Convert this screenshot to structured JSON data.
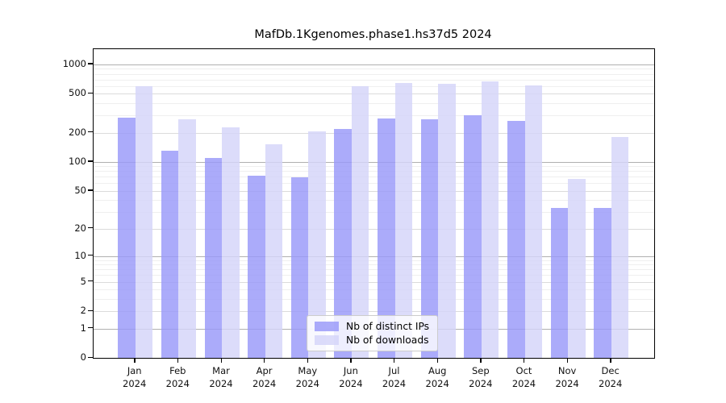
{
  "title": "MafDb.1Kgenomes.phase1.hs37d5 2024",
  "chart_data": {
    "type": "bar",
    "scale": "log1p",
    "title": "MafDb.1Kgenomes.phase1.hs37d5 2024",
    "categories": [
      "Jan",
      "Feb",
      "Mar",
      "Apr",
      "May",
      "Jun",
      "Jul",
      "Aug",
      "Sep",
      "Oct",
      "Nov",
      "Dec"
    ],
    "category_year": "2024",
    "series": [
      {
        "name": "Nb of distinct IPs",
        "color": "#9898f9",
        "values": [
          285,
          131,
          110,
          72,
          69,
          216,
          277,
          275,
          303,
          262,
          33,
          33
        ]
      },
      {
        "name": "Nb of downloads",
        "color": "#d4d4f9",
        "values": [
          600,
          272,
          226,
          151,
          205,
          597,
          640,
          628,
          672,
          608,
          67,
          181
        ]
      }
    ],
    "yticks": [
      0,
      1,
      2,
      5,
      10,
      20,
      50,
      100,
      200,
      500,
      1000
    ],
    "ylim": [
      0,
      1430
    ],
    "xlabel": "",
    "ylabel": "",
    "grid": true,
    "legend_position": "lower center"
  },
  "colors": {
    "grid_major": "#b0b0b0",
    "grid_mid": "#dbdbdb",
    "grid_minor": "#efefef",
    "axis": "#000000",
    "legend_border": "#cccccc"
  }
}
